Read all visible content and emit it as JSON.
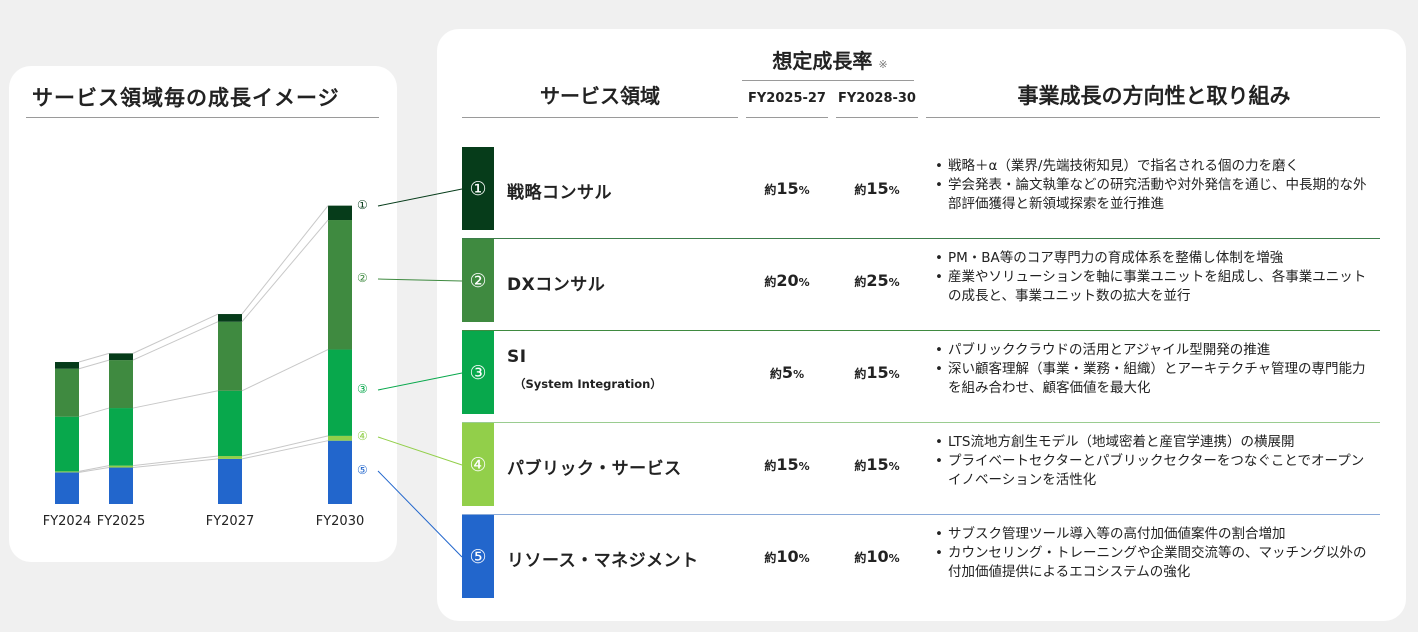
{
  "chart_data": {
    "type": "bar",
    "title": "サービス領域毎の成長イメージ",
    "categories": [
      "FY2024",
      "FY2025",
      "FY2027",
      "FY2030"
    ],
    "stacked": true,
    "series": [
      {
        "name": "⑤",
        "color": "#2266cc",
        "values": [
          33,
          38,
          47,
          66
        ]
      },
      {
        "name": "④",
        "color": "#92cf4a",
        "values": [
          1,
          2,
          3,
          5
        ]
      },
      {
        "name": "③",
        "color": "#08a84c",
        "values": [
          57,
          60,
          68,
          90
        ]
      },
      {
        "name": "②",
        "color": "#3f8a40",
        "values": [
          50,
          50,
          72,
          135
        ]
      },
      {
        "name": "①",
        "color": "#063c1a",
        "values": [
          7,
          7,
          8,
          15
        ]
      }
    ],
    "ylim": [
      0,
      320
    ],
    "grid": false
  },
  "header": {
    "area": "サービス領域",
    "rate_title": "想定成長率",
    "rate_note": "※",
    "fy1": "FY2025-27",
    "fy2": "FY2028-30",
    "direction": "事業成長の方向性と取り組み"
  },
  "rows": [
    {
      "num": "①",
      "name": "戦略コンサル",
      "sub": "",
      "color": "#063c1a",
      "sep": "#3c7d4a",
      "r1_pre": "約",
      "r1": "15",
      "r2_pre": "約",
      "r2": "15",
      "unit": "%",
      "bullets": [
        "戦略＋α（業界/先端技術知見）で指名される個の力を磨く",
        "学会発表・論文執筆などの研究活動や対外発信を通じ、中長期的な外部評価獲得と新領域探索を並行推進"
      ]
    },
    {
      "num": "②",
      "name": "DXコンサル",
      "sub": "",
      "color": "#3f8a40",
      "sep": "#3f8a40",
      "r1_pre": "約",
      "r1": "20",
      "r2_pre": "約",
      "r2": "25",
      "unit": "%",
      "bullets": [
        "PM・BA等のコア専門力の育成体系を整備し体制を増強",
        "産業やソリューションを軸に事業ユニットを組成し、各事業ユニットの成長と、事業ユニット数の拡大を並行"
      ]
    },
    {
      "num": "③",
      "name": "SI",
      "sub": "（System Integration）",
      "color": "#08a84c",
      "sep": "#9acc90",
      "r1_pre": "約",
      "r1": "5",
      "r2_pre": "約",
      "r2": "15",
      "unit": "%",
      "bullets": [
        "パブリッククラウドの活用とアジャイル型開発の推進",
        "深い顧客理解（事業・業務・組織）とアーキテクチャ管理の専門能力を組み合わせ、顧客価値を最大化"
      ]
    },
    {
      "num": "④",
      "name": "パブリック・サービス",
      "sub": "",
      "color": "#92cf4a",
      "sep": "#8aaad8",
      "r1_pre": "約",
      "r1": "15",
      "r2_pre": "約",
      "r2": "15",
      "unit": "%",
      "bullets": [
        "LTS流地方創生モデル（地域密着と産官学連携）の横展開",
        "プライベートセクターとパブリックセクターをつなぐことでオープンイノベーションを活性化"
      ]
    },
    {
      "num": "⑤",
      "name": "リソース・マネジメント",
      "sub": "",
      "color": "#2266cc",
      "sep": "transparent",
      "r1_pre": "約",
      "r1": "10",
      "r2_pre": "約",
      "r2": "10",
      "unit": "%",
      "bullets": [
        "サブスク管理ツール導入等の高付加価値案件の割合増加",
        "カウンセリング・トレーニングや企業間交流等の、マッチング以外の付加価値提供によるエコシステムの強化"
      ]
    }
  ]
}
